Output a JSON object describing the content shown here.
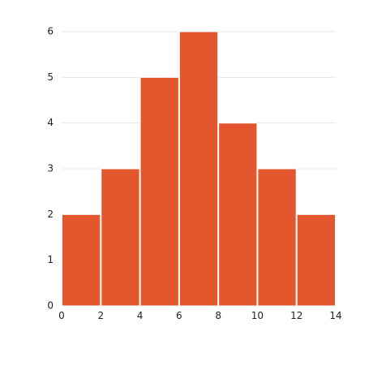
{
  "chart_data": {
    "type": "bar",
    "subtype": "histogram",
    "title": "",
    "xlabel": "",
    "ylabel": "",
    "bins": [
      {
        "x0": 0,
        "x1": 2,
        "count": 2
      },
      {
        "x0": 2,
        "x1": 4,
        "count": 3
      },
      {
        "x0": 4,
        "x1": 6,
        "count": 5
      },
      {
        "x0": 6,
        "x1": 8,
        "count": 6
      },
      {
        "x0": 8,
        "x1": 10,
        "count": 4
      },
      {
        "x0": 10,
        "x1": 12,
        "count": 3
      },
      {
        "x0": 12,
        "x1": 14,
        "count": 2
      }
    ],
    "xlim": [
      0,
      14
    ],
    "ylim": [
      0,
      6
    ],
    "xticks": [
      "0",
      "2",
      "4",
      "6",
      "8",
      "10",
      "12",
      "14"
    ],
    "yticks": [
      "0",
      "1",
      "2",
      "3",
      "4",
      "5",
      "6"
    ],
    "grid": "horizontal",
    "legend": "none",
    "bar_color": "#e4572e",
    "gridline_color": "#e6e6e6"
  }
}
